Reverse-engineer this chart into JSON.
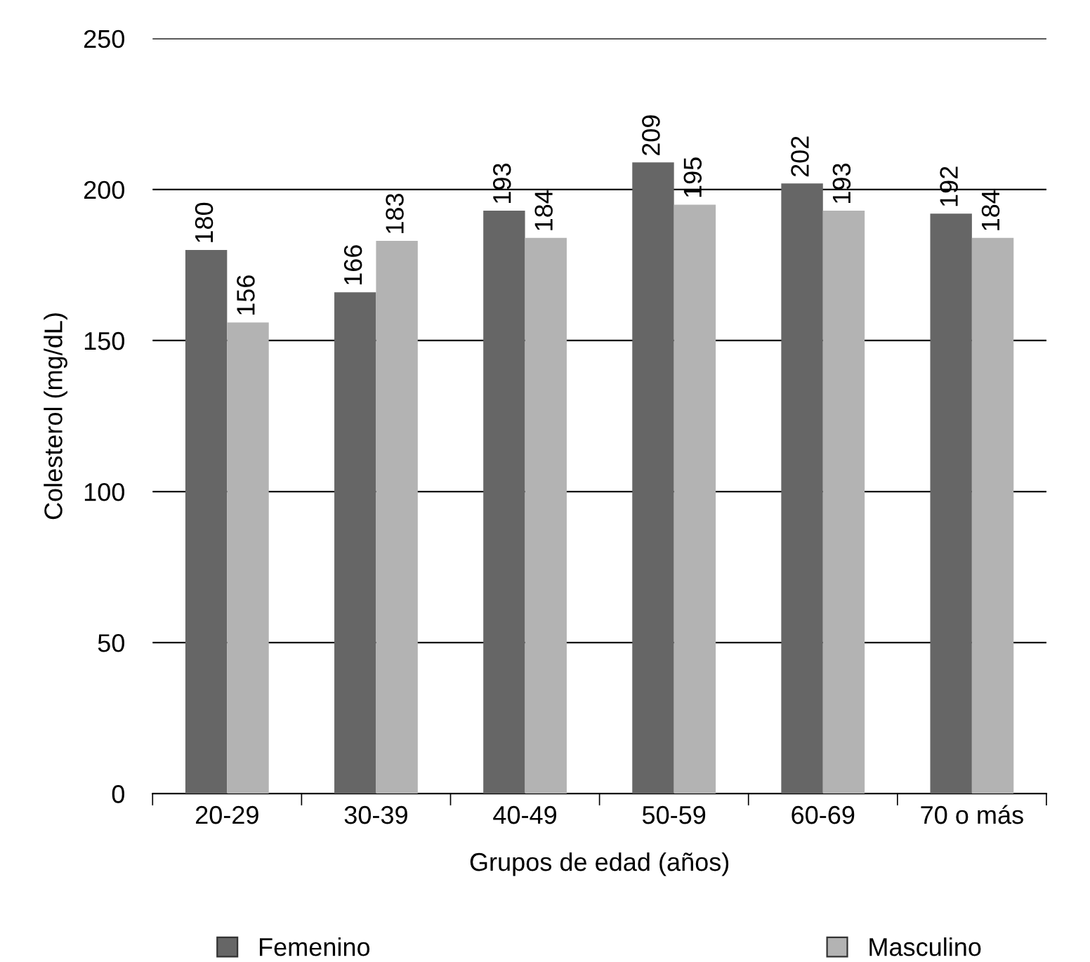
{
  "chart_data": {
    "type": "bar",
    "xlabel": "Grupos de edad (años)",
    "ylabel": "Colesterol (mg/dL)",
    "categories": [
      "20-29",
      "30-39",
      "40-49",
      "50-59",
      "60-69",
      "70 o más"
    ],
    "series": [
      {
        "name": "Femenino",
        "color": "#666666",
        "values": [
          180,
          166,
          193,
          209,
          202,
          192
        ]
      },
      {
        "name": "Masculino",
        "color": "#b3b3b3",
        "values": [
          156,
          183,
          184,
          195,
          193,
          184
        ]
      }
    ],
    "ylim": [
      0,
      250
    ],
    "yticks": [
      0,
      50,
      100,
      150,
      200,
      250
    ],
    "grid": "y",
    "legend": "bottom",
    "data_labels": true
  }
}
